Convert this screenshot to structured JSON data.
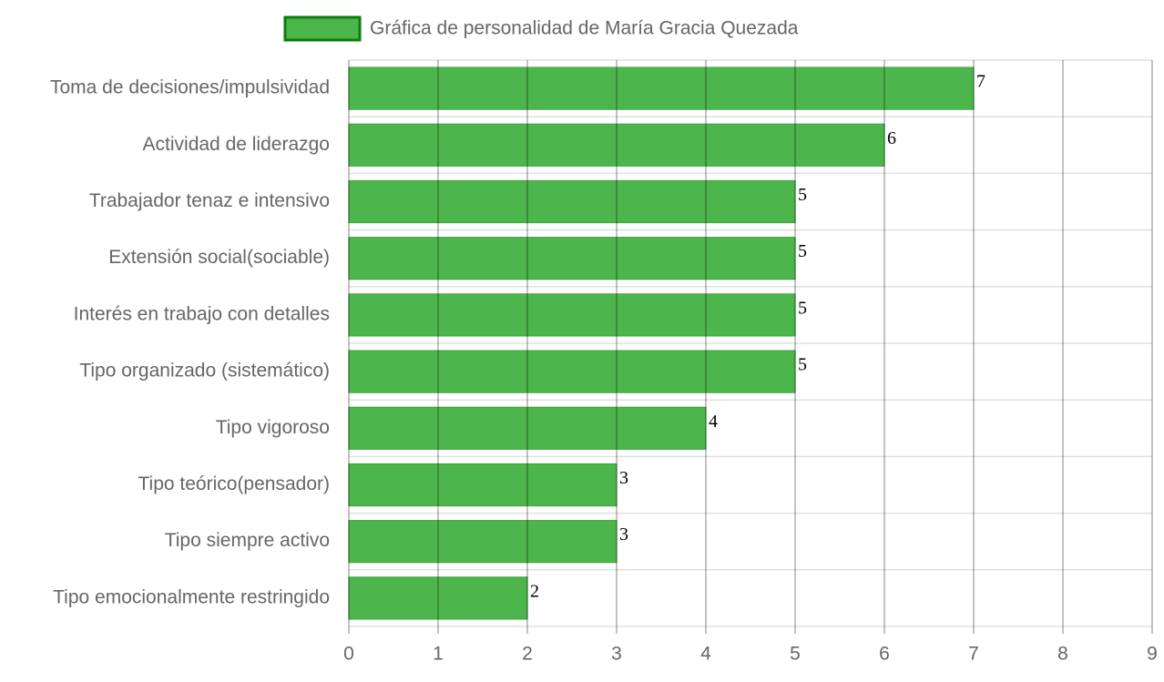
{
  "chart_data": {
    "type": "bar",
    "orientation": "horizontal",
    "categories": [
      "Toma de decisiones/impulsividad",
      "Actividad de liderazgo",
      "Trabajador tenaz e intensivo",
      "Extensión social(sociable)",
      "Interés en trabajo con detalles",
      "Tipo organizado (sistemático)",
      "Tipo vigoroso",
      "Tipo teórico(pensador)",
      "Tipo siempre activo",
      "Tipo emocionalmente restringido"
    ],
    "series": [
      {
        "name": "Gráfica de personalidad de María Gracia Quezada",
        "color": "#4cb64c",
        "values": [
          7,
          6,
          5,
          5,
          5,
          5,
          4,
          3,
          3,
          2
        ]
      }
    ],
    "xlim": [
      0,
      9
    ],
    "xticks": [
      0,
      1,
      2,
      3,
      4,
      5,
      6,
      7,
      8,
      9
    ],
    "grid": true,
    "legend": "top"
  }
}
